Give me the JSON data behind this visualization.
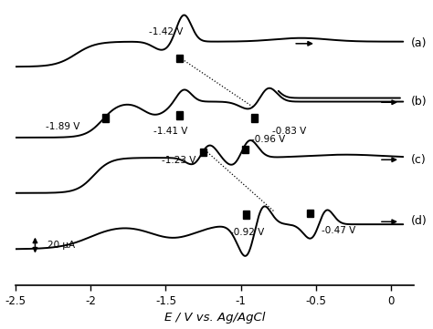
{
  "xlim": [
    -2.5,
    0.15
  ],
  "ylim": [
    -0.85,
    1.3
  ],
  "xlabel": "E / V vs. Ag/AgCl",
  "xticks": [
    -2.5,
    -2.0,
    -1.5,
    -1.0,
    -0.5,
    0.0
  ],
  "xtick_labels": [
    "-2.5",
    "-2",
    "-1.5",
    "-1",
    "-0.5",
    "0"
  ],
  "scale_bar_label": "20 μA",
  "labels_a": [
    "-1.42 V"
  ],
  "labels_b": [
    "-1.89 V",
    "-1.41 V",
    "-0.83 V"
  ],
  "labels_c": [
    "-1.23 V",
    "-0.96 V"
  ],
  "labels_d": [
    "-0.92 V",
    "-0.47 V"
  ],
  "panel_labels": [
    "(a)",
    "(b)",
    "(c)",
    "(d)"
  ],
  "background_color": "#ffffff",
  "line_color": "#000000"
}
